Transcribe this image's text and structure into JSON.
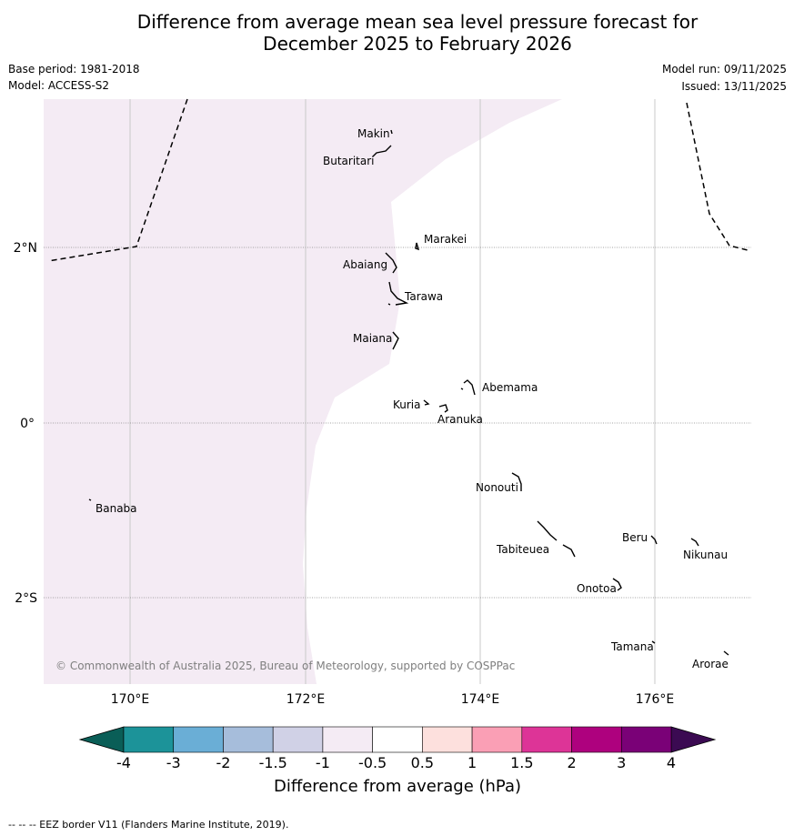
{
  "title": {
    "line1": "Difference from average mean sea level pressure forecast for",
    "line2": "December 2025 to February 2026"
  },
  "meta": {
    "base_period": "Base period: 1981-2018",
    "model": "Model: ACCESS-S2",
    "model_run": "Model run: 09/11/2025",
    "issued": "Issued: 13/11/2025"
  },
  "axes": {
    "lon_labels": [
      "170°E",
      "172°E",
      "174°E",
      "176°E"
    ],
    "lat_labels": [
      "2°N",
      "0°",
      "2°S"
    ]
  },
  "places": [
    {
      "name": "Makin"
    },
    {
      "name": "Butaritari"
    },
    {
      "name": "Marakei"
    },
    {
      "name": "Abaiang"
    },
    {
      "name": "Tarawa"
    },
    {
      "name": "Maiana"
    },
    {
      "name": "Abemama"
    },
    {
      "name": "Kuria"
    },
    {
      "name": "Aranuka"
    },
    {
      "name": "Banaba"
    },
    {
      "name": "Nonouti"
    },
    {
      "name": "Beru"
    },
    {
      "name": "Nikunau"
    },
    {
      "name": "Tabiteuea"
    },
    {
      "name": "Onotoa"
    },
    {
      "name": "Tamana"
    },
    {
      "name": "Arorae"
    }
  ],
  "copyright": "© Commonwealth of Australia 2025, Bureau of Meteorology, supported by COSPPac",
  "colorbar": {
    "title": "Difference from average (hPa)",
    "ticks": [
      "-4",
      "-3",
      "-2",
      "-1.5",
      "-1",
      "-0.5",
      "0.5",
      "1",
      "1.5",
      "2",
      "3",
      "4"
    ],
    "low_extend_color": "#0a5e57",
    "high_extend_color": "#3b0a52",
    "colors": [
      "#1c9399",
      "#6aaed6",
      "#a6bddb",
      "#d0d1e6",
      "#f4ebf4",
      "#ffffff",
      "#fde0dd",
      "#fa9fb5",
      "#dd3497",
      "#ae017e",
      "#7a0177"
    ]
  },
  "map_fill_color": "#f4ebf4",
  "footer": "--  --  -- EEZ border V11 (Flanders Marine Institute, 2019)."
}
